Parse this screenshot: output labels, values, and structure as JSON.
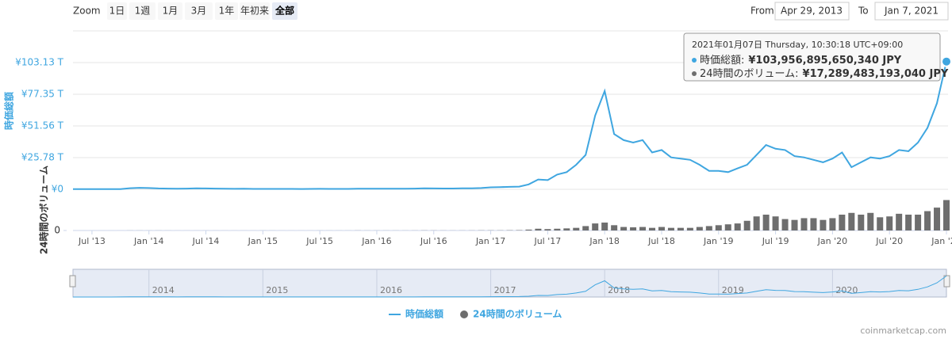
{
  "toolbar": {
    "zoom_label": "Zoom",
    "zoom_buttons": [
      "1日",
      "1週",
      "1月",
      "3月",
      "1年",
      "年初来",
      "全部"
    ],
    "active_zoom": 6,
    "from_label": "From",
    "from_value": "Apr 29, 2013",
    "to_label": "To",
    "to_value": "Jan 7, 2021"
  },
  "chart_data": {
    "type": "line",
    "y_axis_title": "時価総額",
    "y2_axis_title": "24時間のボリューム",
    "x": [
      "2013-05",
      "2013-06",
      "2013-07",
      "2013-08",
      "2013-09",
      "2013-10",
      "2013-11",
      "2013-12",
      "2014-01",
      "2014-02",
      "2014-03",
      "2014-04",
      "2014-05",
      "2014-06",
      "2014-07",
      "2014-08",
      "2014-09",
      "2014-10",
      "2014-11",
      "2014-12",
      "2015-01",
      "2015-02",
      "2015-03",
      "2015-04",
      "2015-05",
      "2015-06",
      "2015-07",
      "2015-08",
      "2015-09",
      "2015-10",
      "2015-11",
      "2015-12",
      "2016-01",
      "2016-02",
      "2016-03",
      "2016-04",
      "2016-05",
      "2016-06",
      "2016-07",
      "2016-08",
      "2016-09",
      "2016-10",
      "2016-11",
      "2016-12",
      "2017-01",
      "2017-02",
      "2017-03",
      "2017-04",
      "2017-05",
      "2017-06",
      "2017-07",
      "2017-08",
      "2017-09",
      "2017-10",
      "2017-11",
      "2017-12",
      "2018-01",
      "2018-02",
      "2018-03",
      "2018-04",
      "2018-05",
      "2018-06",
      "2018-07",
      "2018-08",
      "2018-09",
      "2018-10",
      "2018-11",
      "2018-12",
      "2019-01",
      "2019-02",
      "2019-03",
      "2019-04",
      "2019-05",
      "2019-06",
      "2019-07",
      "2019-08",
      "2019-09",
      "2019-10",
      "2019-11",
      "2019-12",
      "2020-01",
      "2020-02",
      "2020-03",
      "2020-04",
      "2020-05",
      "2020-06",
      "2020-07",
      "2020-08",
      "2020-09",
      "2020-10",
      "2020-11",
      "2020-12",
      "2021-01"
    ],
    "series": [
      {
        "name": "時価総額",
        "color": "#3fa6e0",
        "values": [
          0.15,
          0.12,
          0.1,
          0.12,
          0.15,
          0.2,
          0.9,
          1.2,
          1.0,
          0.7,
          0.6,
          0.5,
          0.6,
          0.8,
          0.7,
          0.6,
          0.5,
          0.4,
          0.45,
          0.35,
          0.3,
          0.3,
          0.3,
          0.3,
          0.28,
          0.3,
          0.38,
          0.3,
          0.3,
          0.35,
          0.45,
          0.5,
          0.5,
          0.5,
          0.5,
          0.5,
          0.55,
          0.75,
          0.7,
          0.65,
          0.65,
          0.75,
          0.85,
          1.0,
          1.6,
          1.8,
          2.0,
          2.2,
          4.0,
          8.0,
          7.5,
          12,
          14,
          20,
          28,
          60,
          80,
          45,
          40,
          38,
          40,
          30,
          32,
          26,
          25,
          24,
          20,
          15,
          15,
          14,
          17,
          20,
          28,
          36,
          33,
          32,
          27,
          26,
          24,
          22,
          25,
          30,
          18,
          22,
          26,
          25,
          27,
          32,
          31,
          38,
          50,
          70,
          103.96
        ]
      },
      {
        "name": "24時間のボリューム",
        "color": "#6e6e6e",
        "type": "bar",
        "axis": "y2",
        "values": [
          0.003,
          0.002,
          0.002,
          0.003,
          0.003,
          0.005,
          0.03,
          0.03,
          0.02,
          0.03,
          0.02,
          0.01,
          0.01,
          0.01,
          0.01,
          0.01,
          0.01,
          0.01,
          0.01,
          0.01,
          0.02,
          0.02,
          0.01,
          0.01,
          0.01,
          0.01,
          0.02,
          0.02,
          0.02,
          0.02,
          0.05,
          0.03,
          0.03,
          0.03,
          0.03,
          0.03,
          0.04,
          0.08,
          0.06,
          0.05,
          0.04,
          0.05,
          0.06,
          0.1,
          0.1,
          0.1,
          0.15,
          0.2,
          0.5,
          1.0,
          0.8,
          1.0,
          1.2,
          1.5,
          2.5,
          4.0,
          4.5,
          3.0,
          2.0,
          1.8,
          2.0,
          1.5,
          2.0,
          1.5,
          1.5,
          1.5,
          2.0,
          2.5,
          3.0,
          3.5,
          4.0,
          5.5,
          8.0,
          9.0,
          8.0,
          6.5,
          6.0,
          7.0,
          7.0,
          6.0,
          7.0,
          9.0,
          10.0,
          9.0,
          10.0,
          7.5,
          8.0,
          9.5,
          9.0,
          9.0,
          11.0,
          13.0,
          17.29
        ]
      }
    ],
    "xlim": [
      "2013-05",
      "2021-01"
    ],
    "xticks": [
      {
        "value": "2013-07",
        "label": "Jul '13"
      },
      {
        "value": "2014-01",
        "label": "Jan '14"
      },
      {
        "value": "2014-07",
        "label": "Jul '14"
      },
      {
        "value": "2015-01",
        "label": "Jan '15"
      },
      {
        "value": "2015-07",
        "label": "Jul '15"
      },
      {
        "value": "2016-01",
        "label": "Jan '16"
      },
      {
        "value": "2016-07",
        "label": "Jul '16"
      },
      {
        "value": "2017-01",
        "label": "Jan '17"
      },
      {
        "value": "2017-07",
        "label": "Jul '17"
      },
      {
        "value": "2018-01",
        "label": "Jan '18"
      },
      {
        "value": "2018-07",
        "label": "Jul '18"
      },
      {
        "value": "2019-01",
        "label": "Jan '19"
      },
      {
        "value": "2019-07",
        "label": "Jul '19"
      },
      {
        "value": "2020-01",
        "label": "Jan '20"
      },
      {
        "value": "2020-07",
        "label": "Jul '20"
      },
      {
        "value": "2021-01",
        "label": "Jan '21"
      }
    ],
    "ylim": [
      0,
      128.91
    ],
    "yticks": [
      {
        "value": 0,
        "label": "¥0"
      },
      {
        "value": 25.78,
        "label": "¥25.78 T"
      },
      {
        "value": 51.56,
        "label": "¥51.56 T"
      },
      {
        "value": 77.35,
        "label": "¥77.35 T"
      },
      {
        "value": 103.13,
        "label": "¥103.13 T"
      }
    ],
    "y2lim": [
      0,
      18
    ],
    "y2ticks": [
      0
    ],
    "grid": true,
    "tooltip": {
      "header": "2021年01月07日 Thursday, 10:30:18 UTC+09:00",
      "rows": [
        {
          "label": "時価総額:",
          "value": "¥103,956,895,650,340 JPY"
        },
        {
          "label": "24時間のボリューム:",
          "value": "¥17,289,483,193,040 JPY"
        }
      ]
    },
    "navigator": {
      "labels": [
        {
          "value": "2014-01",
          "label": "2014"
        },
        {
          "value": "2015-01",
          "label": "2015"
        },
        {
          "value": "2016-01",
          "label": "2016"
        },
        {
          "value": "2017-01",
          "label": "2017"
        },
        {
          "value": "2018-01",
          "label": "2018"
        },
        {
          "value": "2019-01",
          "label": "2019"
        },
        {
          "value": "2020-01",
          "label": "2020"
        }
      ]
    },
    "credit": "coinmarketcap.com"
  }
}
